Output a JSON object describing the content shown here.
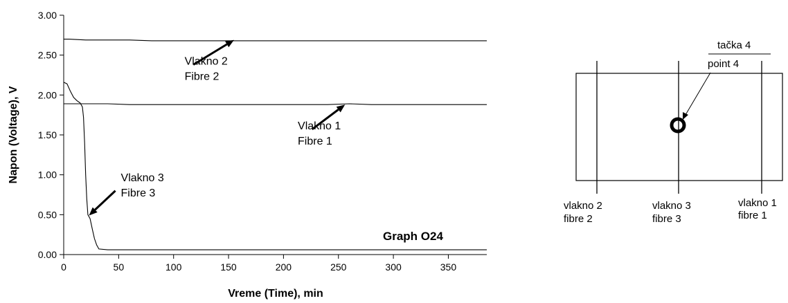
{
  "chart_data": {
    "type": "line",
    "title": "Graph O24",
    "xlabel": "Vreme (Time), min",
    "ylabel": "Napon (Voltage), V",
    "xlim": [
      0,
      385
    ],
    "ylim": [
      0,
      3
    ],
    "x_ticks": [
      "0",
      "50",
      "100",
      "150",
      "200",
      "250",
      "300",
      "350"
    ],
    "y_ticks": [
      "0.00",
      "0.50",
      "1.00",
      "1.50",
      "2.00",
      "2.50",
      "3.00"
    ],
    "grid": false,
    "legend": "none",
    "series": [
      {
        "name": "Vlakno 2 / Fibre 2",
        "x": [
          0,
          5,
          20,
          40,
          60,
          80,
          100,
          120,
          140,
          160,
          180,
          200,
          220,
          240,
          260,
          280,
          300,
          320,
          340,
          360,
          385
        ],
        "y": [
          2.7,
          2.7,
          2.69,
          2.69,
          2.69,
          2.68,
          2.68,
          2.68,
          2.68,
          2.68,
          2.68,
          2.68,
          2.68,
          2.68,
          2.68,
          2.68,
          2.68,
          2.68,
          2.68,
          2.68,
          2.68
        ]
      },
      {
        "name": "Vlakno 1 / Fibre 1",
        "x": [
          0,
          20,
          40,
          60,
          80,
          100,
          120,
          140,
          160,
          180,
          200,
          220,
          240,
          260,
          280,
          300,
          320,
          340,
          360,
          385
        ],
        "y": [
          1.89,
          1.89,
          1.89,
          1.88,
          1.88,
          1.88,
          1.88,
          1.88,
          1.88,
          1.88,
          1.88,
          1.88,
          1.88,
          1.89,
          1.88,
          1.88,
          1.88,
          1.88,
          1.88,
          1.88
        ]
      },
      {
        "name": "Vlakno 3 / Fibre 3",
        "x": [
          0,
          3,
          6,
          9,
          12,
          15,
          17,
          18,
          19,
          20,
          21,
          22,
          24,
          26,
          28,
          30,
          32,
          40,
          60,
          80,
          100,
          150,
          200,
          250,
          300,
          350,
          385
        ],
        "y": [
          2.16,
          2.14,
          2.05,
          1.97,
          1.93,
          1.9,
          1.85,
          1.72,
          1.4,
          1.0,
          0.7,
          0.5,
          0.45,
          0.32,
          0.2,
          0.12,
          0.07,
          0.06,
          0.06,
          0.06,
          0.06,
          0.06,
          0.06,
          0.06,
          0.06,
          0.06,
          0.06
        ]
      }
    ],
    "annotations": [
      {
        "line1": "Vlakno 2",
        "line2": "Fibre 2",
        "text_x": 110,
        "text_y": 2.38,
        "arrow_from": [
          118,
          2.38
        ],
        "arrow_to": [
          155,
          2.69
        ]
      },
      {
        "line1": "Vlakno 1",
        "line2": "Fibre 1",
        "text_x": 213,
        "text_y": 1.57,
        "arrow_from": [
          226,
          1.57
        ],
        "arrow_to": [
          256,
          1.88
        ]
      },
      {
        "line1": "Vlakno 3",
        "line2": "Fibre 3",
        "text_x": 52,
        "text_y": 0.92,
        "arrow_from": [
          47,
          0.8
        ],
        "arrow_to": [
          23,
          0.49
        ]
      }
    ]
  },
  "diagram": {
    "point_label_top": "tačka 4",
    "point_label_bottom": "point 4",
    "fibres": [
      {
        "label1": "vlakno 2",
        "label2": "fibre 2"
      },
      {
        "label1": "vlakno 3",
        "label2": "fibre 3"
      },
      {
        "label1": "vlakno 1",
        "label2": "fibre 1"
      }
    ]
  }
}
